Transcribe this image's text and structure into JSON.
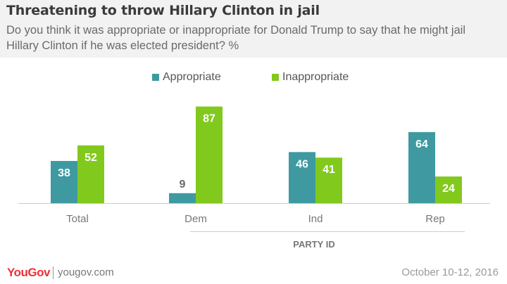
{
  "header": {
    "title": "Threatening to throw Hillary Clinton in jail",
    "subtitle": "Do you think it was appropriate or inappropriate for Donald Trump to say that he might jail Hillary Clinton if he was elected president? %"
  },
  "footer": {
    "brand": "YouGov",
    "site": "yougov.com",
    "date": "October 10-12, 2016"
  },
  "colors": {
    "appropriate": "#3e9aa0",
    "inappropriate": "#82c91e"
  },
  "chart_data": {
    "type": "bar",
    "title": "Threatening to throw Hillary Clinton in jail",
    "categories": [
      "Total",
      "Dem",
      "Ind",
      "Rep"
    ],
    "group_label": "PARTY ID",
    "series": [
      {
        "name": "Appropriate",
        "values": [
          38,
          9,
          46,
          64
        ]
      },
      {
        "name": "Inappropriate",
        "values": [
          52,
          87,
          41,
          24
        ]
      }
    ],
    "ylim": [
      0,
      100
    ],
    "grid": false,
    "legend_position": "top"
  }
}
